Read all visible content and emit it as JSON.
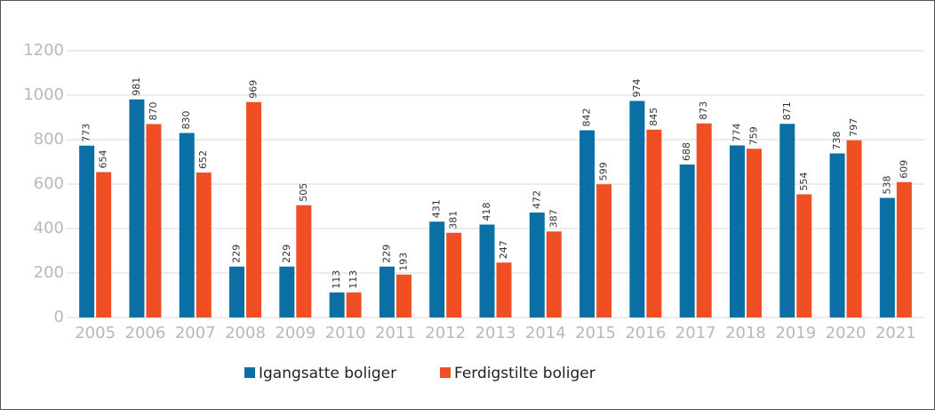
{
  "chart_data": {
    "type": "bar",
    "categories": [
      "2005",
      "2006",
      "2007",
      "2008",
      "2009",
      "2010",
      "2011",
      "2012",
      "2013",
      "2014",
      "2015",
      "2016",
      "2017",
      "2018",
      "2019",
      "2020",
      "2021"
    ],
    "series": [
      {
        "name": "Igangsatte boliger",
        "color": "#0a6fa4",
        "values": [
          773,
          981,
          830,
          229,
          229,
          113,
          229,
          431,
          418,
          472,
          842,
          974,
          688,
          774,
          871,
          738,
          538
        ]
      },
      {
        "name": "Ferdigstilte boliger",
        "color": "#f04e23",
        "values": [
          654,
          870,
          652,
          969,
          505,
          113,
          193,
          381,
          247,
          387,
          599,
          845,
          873,
          759,
          554,
          797,
          609
        ]
      }
    ],
    "ylim": [
      0,
      1200
    ],
    "yticks": [
      0,
      200,
      400,
      600,
      800,
      1000,
      1200
    ],
    "grid": true,
    "legend": "bottom"
  }
}
